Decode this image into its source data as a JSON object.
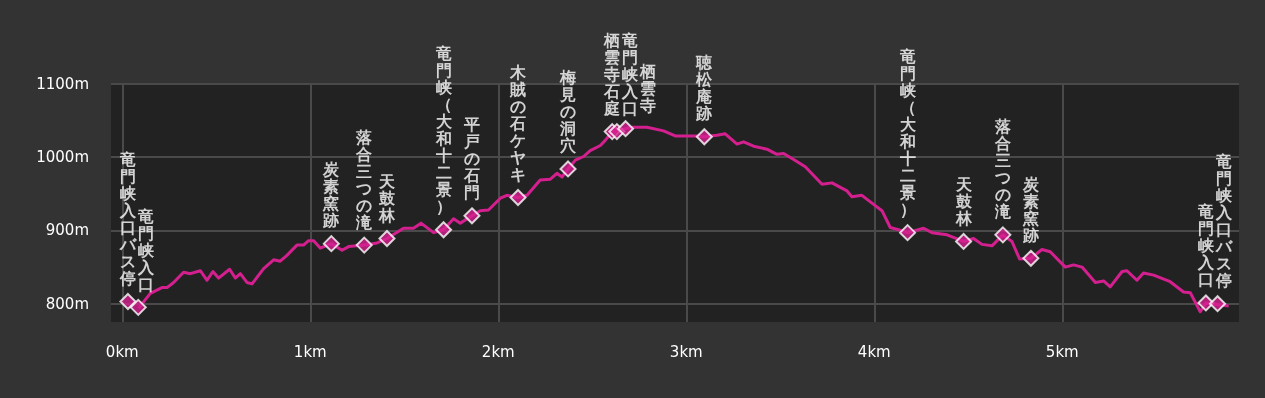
{
  "chart_data": {
    "type": "line",
    "xlim": [
      -0.06,
      5.94
    ],
    "ylim": [
      775,
      1100
    ],
    "xticks": [
      {
        "value": 0,
        "label": "0km"
      },
      {
        "value": 1,
        "label": "1km"
      },
      {
        "value": 2,
        "label": "2km"
      },
      {
        "value": 3,
        "label": "3km"
      },
      {
        "value": 4,
        "label": "4km"
      },
      {
        "value": 5,
        "label": "5km"
      }
    ],
    "yticks": [
      {
        "value": 800,
        "label": "800m"
      },
      {
        "value": 900,
        "label": "900m"
      },
      {
        "value": 1000,
        "label": "1000m"
      },
      {
        "value": 1100,
        "label": "1100m"
      }
    ],
    "grid": true,
    "series": [
      {
        "type": "line",
        "color": "#d4208f",
        "marker": "none",
        "x": [
          0.087,
          0.149,
          0.211,
          0.238,
          0.273,
          0.326,
          0.362,
          0.415,
          0.451,
          0.482,
          0.512,
          0.571,
          0.601,
          0.628,
          0.663,
          0.69,
          0.752,
          0.805,
          0.84,
          0.876,
          0.929,
          0.964,
          0.991,
          1.018,
          1.053,
          1.112,
          1.169,
          1.204,
          1.248,
          1.287,
          1.355,
          1.408,
          1.496,
          1.549,
          1.589,
          1.656,
          1.709,
          1.762,
          1.798,
          1.86,
          1.904,
          1.948,
          2.011,
          2.046,
          2.105,
          2.153,
          2.223,
          2.277,
          2.312,
          2.339,
          2.371,
          2.41,
          2.454,
          2.489,
          2.543,
          2.569,
          2.606,
          2.631,
          2.677,
          2.702,
          2.791,
          2.879,
          2.941,
          3.057,
          3.096,
          3.163,
          3.207,
          3.27,
          3.305,
          3.358,
          3.429,
          3.482,
          3.518,
          3.571,
          3.633,
          3.722,
          3.775,
          3.855,
          3.881,
          3.934,
          3.979,
          4.041,
          4.085,
          4.129,
          4.177,
          4.262,
          4.307,
          4.387,
          4.475,
          4.528,
          4.573,
          4.626,
          4.684,
          4.732,
          4.773,
          4.833,
          4.892,
          4.936,
          5.016,
          5.06,
          5.105,
          5.176,
          5.22,
          5.255,
          5.318,
          5.344,
          5.397,
          5.432,
          5.486,
          5.574,
          5.645,
          5.681,
          5.734,
          5.764,
          5.885
        ],
        "values": [
          794,
          814,
          822,
          822,
          829,
          843,
          841,
          845,
          832,
          844,
          835,
          847,
          835,
          841,
          829,
          827,
          848,
          860,
          858,
          866,
          880,
          880,
          886,
          886,
          876,
          882,
          873,
          878,
          879,
          880,
          883,
          889,
          903,
          903,
          910,
          897,
          901,
          916,
          910,
          920,
          927,
          928,
          944,
          948,
          945,
          948,
          969,
          970,
          978,
          973,
          984,
          996,
          1001,
          1009,
          1016,
          1023,
          1035,
          1035,
          1039,
          1041,
          1041,
          1036,
          1029,
          1029,
          1028,
          1030,
          1032,
          1018,
          1021,
          1015,
          1011,
          1004,
          1005,
          997,
          987,
          963,
          965,
          954,
          946,
          948,
          939,
          927,
          904,
          901,
          897,
          903,
          897,
          894,
          885,
          889,
          881,
          879,
          894,
          885,
          861,
          862,
          874,
          871,
          850,
          853,
          850,
          829,
          831,
          823,
          844,
          845,
          832,
          842,
          839,
          830,
          816,
          815,
          789,
          801,
          797
        ]
      },
      {
        "type": "scatter",
        "color": "#d4208f",
        "marker": "diamond",
        "x": [
          0.03,
          0.085,
          1.112,
          1.287,
          1.408,
          1.709,
          1.86,
          2.105,
          2.371,
          2.606,
          2.631,
          2.677,
          3.096,
          4.177,
          4.475,
          4.684,
          4.833,
          5.764,
          5.826
        ],
        "values": [
          803,
          795,
          882,
          880,
          889,
          901,
          920,
          945,
          984,
          1035,
          1035,
          1039,
          1028,
          897,
          885,
          894,
          862,
          801,
          800
        ],
        "value_labels": [
          "竜門峡入口バス停",
          "竜門峡入口",
          "炭素窯跡",
          "落合三つの滝",
          "天鼓林",
          "竜門峡（大和十二景）",
          "平戸の石門",
          "木賊の石ケヤキ",
          "梅見の洞穴",
          "栖雲寺石庭",
          "竜門峡入口",
          "栖雲寺",
          "聴松庵跡",
          "竜門峡（大和十二景）",
          "天鼓林",
          "落合三つの滝",
          "炭素窯跡",
          "竜門峡入口",
          "竜門峡入口バス停"
        ]
      }
    ]
  }
}
